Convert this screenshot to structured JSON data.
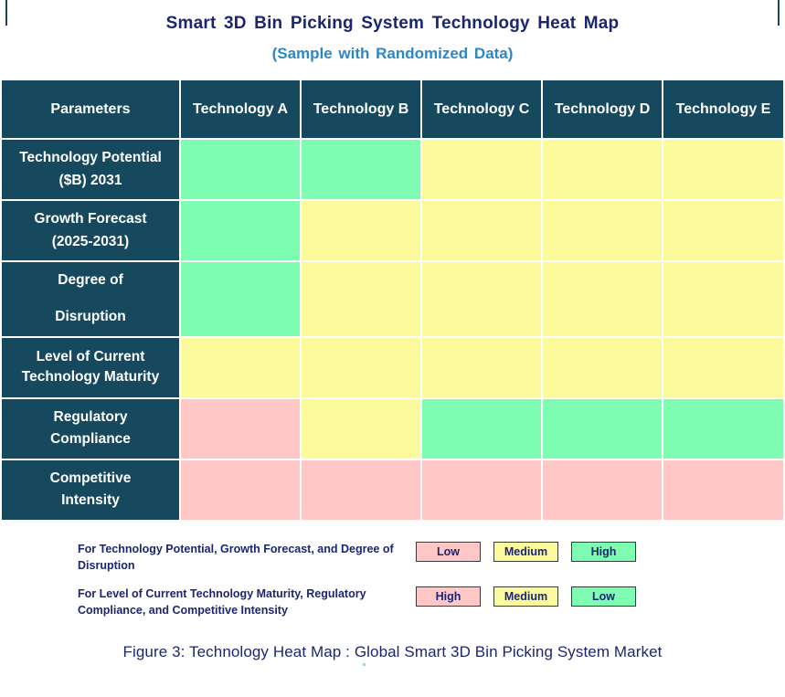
{
  "page": {
    "title": "Smart 3D Bin Picking System Technology Heat Map",
    "subtitle": "(Sample with Randomized Data)",
    "caption": "Figure 3: Technology Heat Map :  Global Smart 3D Bin Picking System Market"
  },
  "colors": {
    "header_bg": "#17495E",
    "title_navy": "#1B2672",
    "subtitle_blue": "#2F86C7",
    "grid_line": "#FFFFFF",
    "cell": {
      "green": "#7DFCB2",
      "yellow": "#FBFB9E",
      "pink": "#FFC7C6"
    }
  },
  "chart_data": {
    "type": "heatmap",
    "title": "Smart 3D Bin Picking System Technology Heat Map",
    "subtitle": "(Sample with Randomized Data)",
    "columns": [
      "Parameters",
      "Technology A",
      "Technology B",
      "Technology C",
      "Technology D",
      "Technology E"
    ],
    "rows": [
      {
        "parameter": "Technology Potential\n($B) 2031",
        "cell_colors": [
          "green",
          "green",
          "yellow",
          "yellow",
          "yellow"
        ],
        "levels": [
          "High",
          "High",
          "Medium",
          "Medium",
          "Medium"
        ]
      },
      {
        "parameter": "Growth Forecast\n(2025-2031)",
        "cell_colors": [
          "green",
          "yellow",
          "yellow",
          "yellow",
          "yellow"
        ],
        "levels": [
          "High",
          "Medium",
          "Medium",
          "Medium",
          "Medium"
        ]
      },
      {
        "parameter": "Degree of\nDisruption",
        "cell_colors": [
          "green",
          "yellow",
          "yellow",
          "yellow",
          "yellow"
        ],
        "levels": [
          "High",
          "Medium",
          "Medium",
          "Medium",
          "Medium"
        ]
      },
      {
        "parameter": "Level of Current\nTechnology Maturity",
        "cell_colors": [
          "yellow",
          "yellow",
          "yellow",
          "yellow",
          "yellow"
        ],
        "levels": [
          "Medium",
          "Medium",
          "Medium",
          "Medium",
          "Medium"
        ]
      },
      {
        "parameter": "Regulatory\nCompliance",
        "cell_colors": [
          "pink",
          "yellow",
          "green",
          "green",
          "green"
        ],
        "levels": [
          "High",
          "Medium",
          "Low",
          "Low",
          "Low"
        ]
      },
      {
        "parameter": "Competitive\nIntensity",
        "cell_colors": [
          "pink",
          "pink",
          "pink",
          "pink",
          "pink"
        ],
        "levels": [
          "High",
          "High",
          "High",
          "High",
          "High"
        ]
      }
    ],
    "legend_position": "bottom"
  },
  "legend": {
    "rows": [
      {
        "text": "For Technology Potential, Growth Forecast, and Degree of Disruption",
        "items": [
          {
            "label": "Low",
            "color": "pink"
          },
          {
            "label": "Medium",
            "color": "yellow"
          },
          {
            "label": "High",
            "color": "green"
          }
        ]
      },
      {
        "text": "For Level of Current Technology Maturity, Regulatory Compliance, and Competitive Intensity",
        "items": [
          {
            "label": "High",
            "color": "pink"
          },
          {
            "label": "Medium",
            "color": "yellow"
          },
          {
            "label": "Low",
            "color": "green"
          }
        ]
      }
    ]
  }
}
